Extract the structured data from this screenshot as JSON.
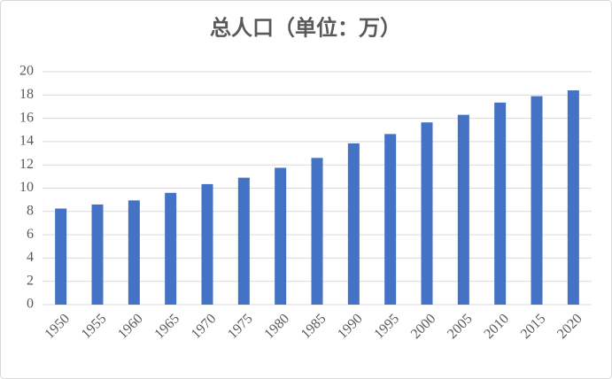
{
  "chart_data": {
    "type": "bar",
    "title": "总人口（单位：万）",
    "categories": [
      "1950",
      "1955",
      "1960",
      "1965",
      "1970",
      "1975",
      "1980",
      "1985",
      "1990",
      "1995",
      "2000",
      "2005",
      "2010",
      "2015",
      "2020"
    ],
    "values": [
      8.25,
      8.6,
      8.95,
      9.6,
      10.35,
      10.9,
      11.75,
      12.6,
      13.85,
      14.65,
      15.65,
      16.3,
      17.35,
      17.9,
      18.4
    ],
    "color": "#4472c4",
    "ylim": [
      0,
      20
    ],
    "yticks": [
      0,
      2,
      4,
      6,
      8,
      10,
      12,
      14,
      16,
      18,
      20
    ],
    "grid": true
  }
}
